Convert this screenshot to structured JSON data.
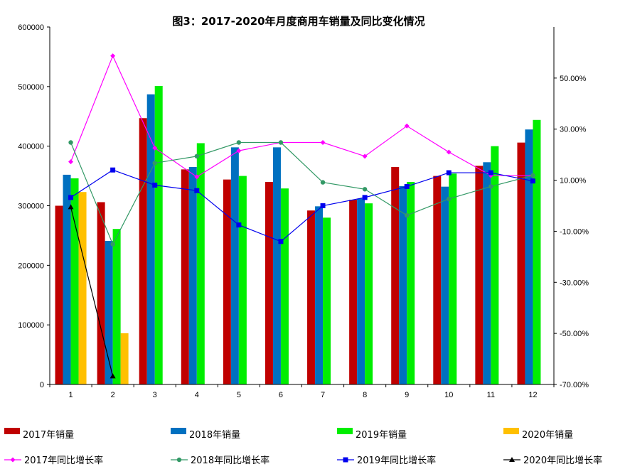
{
  "chart_data": {
    "type": "bar",
    "title": "图3：2017-2020年月度商用车销量及同比变化情况",
    "categories": [
      "1",
      "2",
      "3",
      "4",
      "5",
      "6",
      "7",
      "8",
      "9",
      "10",
      "11",
      "12"
    ],
    "y_left": {
      "min": 0,
      "max": 600000,
      "ticks": [
        "0",
        "100000",
        "200000",
        "300000",
        "400000",
        "500000",
        "600000"
      ]
    },
    "y_right": {
      "min": -70,
      "max": 60,
      "ticks": [
        "-70.00%",
        "-50.00%",
        "-30.00%",
        "-10.00%",
        "10.00%",
        "30.00%",
        "50.00%"
      ]
    },
    "bar_series": [
      {
        "name": "2017年销量",
        "color": "#C00000",
        "values": [
          300000,
          306000,
          447000,
          361000,
          344000,
          340000,
          292000,
          310000,
          365000,
          350000,
          367000,
          406000
        ]
      },
      {
        "name": "2018年销量",
        "color": "#0070C0",
        "values": [
          352000,
          241000,
          487000,
          365000,
          398000,
          398000,
          299000,
          312000,
          333000,
          332000,
          373000,
          428000
        ]
      },
      {
        "name": "2019年销量",
        "color": "#00EE00",
        "values": [
          346000,
          261000,
          501000,
          405000,
          350000,
          329000,
          280000,
          304000,
          340000,
          354000,
          400000,
          444000
        ]
      },
      {
        "name": "2020年销量",
        "color": "#FFC000",
        "values": [
          323000,
          86000,
          null,
          null,
          null,
          null,
          null,
          null,
          null,
          null,
          null,
          null
        ]
      }
    ],
    "line_series": [
      {
        "name": "2017年同比增长率",
        "color": "#FF00FF",
        "marker": "diamond",
        "values": [
          11.0,
          49.5,
          16.0,
          5.5,
          15.0,
          18.0,
          18.0,
          13.0,
          24.0,
          14.5,
          6.0,
          6.0
        ]
      },
      {
        "name": "2018年同比增长率",
        "color": "#339966",
        "marker": "circle",
        "values": [
          18.0,
          -19.0,
          10.5,
          13.0,
          18.0,
          18.0,
          3.5,
          1.0,
          -8.5,
          -2.5,
          2.0,
          6.0
        ]
      },
      {
        "name": "2019年同比增长率",
        "color": "#0000EE",
        "marker": "square",
        "values": [
          -2.0,
          8.0,
          2.5,
          0.5,
          -12.0,
          -18.0,
          -5.0,
          -2.0,
          2.0,
          7.0,
          7.0,
          4.0
        ]
      },
      {
        "name": "2020年同比增长率",
        "color": "#000000",
        "marker": "triangle",
        "values": [
          -5.5,
          -67.0,
          null,
          null,
          null,
          null,
          null,
          null,
          null,
          null,
          null,
          null
        ]
      }
    ]
  }
}
